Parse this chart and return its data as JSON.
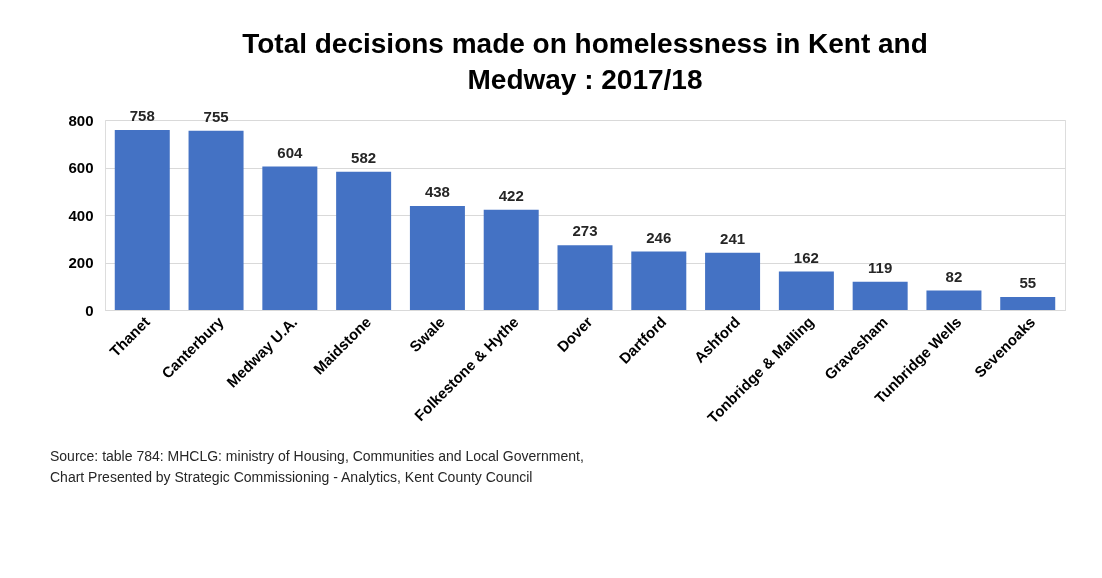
{
  "chart_data": {
    "type": "bar",
    "title": "Total decisions made on homelessness in Kent and Medway : 2017/18",
    "categories": [
      "Thanet",
      "Canterbury",
      "Medway U.A.",
      "Maidstone",
      "Swale",
      "Folkestone & Hythe",
      "Dover",
      "Dartford",
      "Ashford",
      "Tonbridge & Malling",
      "Gravesham",
      "Tunbridge Wells",
      "Sevenoaks"
    ],
    "values": [
      758,
      755,
      604,
      582,
      438,
      422,
      273,
      246,
      241,
      162,
      119,
      82,
      55
    ],
    "color": "#4472c4",
    "ylim": [
      0,
      800
    ],
    "yticks": [
      0,
      200,
      400,
      600,
      800
    ],
    "grid": "y",
    "data_labels": true,
    "annotations": [
      "Source: table 784: MHCLG: ministry of Housing, Communities and Local Government,",
      "Chart Presented by Strategic Commissioning - Analytics, Kent County Council"
    ]
  }
}
